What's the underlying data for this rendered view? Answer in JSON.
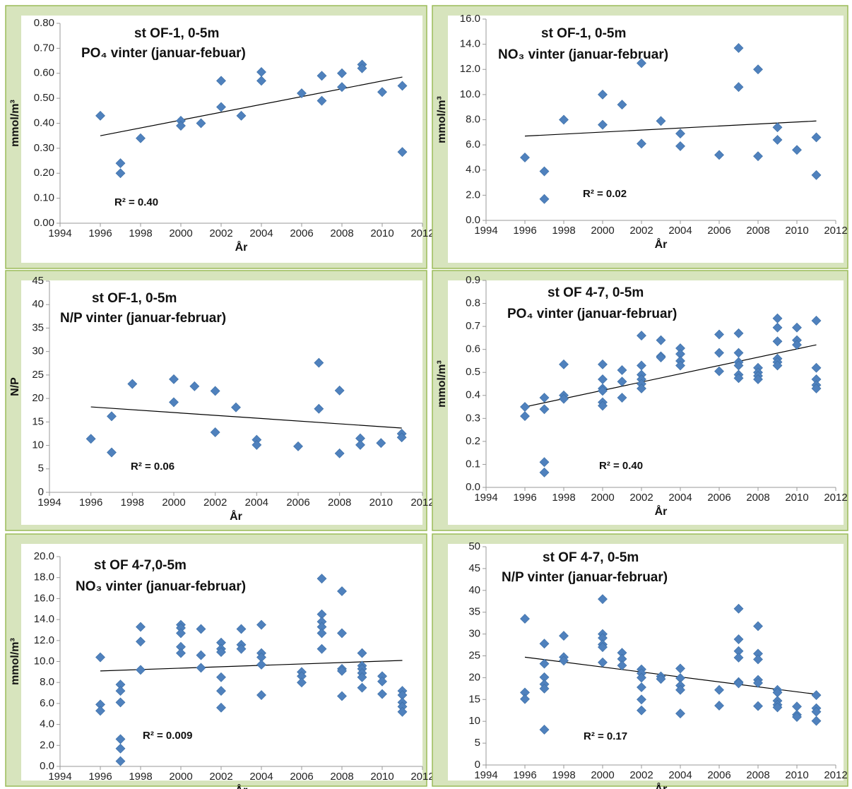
{
  "chart_data": [
    {
      "type": "scatter",
      "title": "st OF-1, 0-5m",
      "subtitle": "PO₄ vinter (januar-febuar)",
      "xlabel": "År",
      "ylabel": "mmol/m³",
      "annotation": "R² = 0.40",
      "color": "#4f81bd",
      "x": [
        1996,
        1997,
        1997,
        1998,
        2000,
        2000,
        2001,
        2002,
        2002,
        2003,
        2004,
        2004,
        2006,
        2007,
        2007,
        2008,
        2008,
        2009,
        2009,
        2010,
        2011,
        2011
      ],
      "values": [
        0.43,
        0.24,
        0.2,
        0.34,
        0.41,
        0.39,
        0.4,
        0.57,
        0.465,
        0.43,
        0.605,
        0.57,
        0.52,
        0.59,
        0.49,
        0.6,
        0.545,
        0.635,
        0.62,
        0.525,
        0.55,
        0.285
      ],
      "trendline": {
        "x": [
          1996,
          2011
        ],
        "values": [
          0.35,
          0.585
        ]
      },
      "xlim": [
        1994,
        2012
      ],
      "xticks": [
        1994,
        1996,
        1998,
        2000,
        2002,
        2004,
        2006,
        2008,
        2010,
        2012
      ],
      "ylim": [
        0,
        0.8
      ],
      "yticks": [
        {
          "value": 0,
          "label": "0.00"
        },
        {
          "value": 0.1,
          "label": "0.10"
        },
        {
          "value": 0.2,
          "label": "0.20"
        },
        {
          "value": 0.3,
          "label": "0.30"
        },
        {
          "value": 0.4,
          "label": "0.40"
        },
        {
          "value": 0.5,
          "label": "0.50"
        },
        {
          "value": 0.6,
          "label": "0.60"
        },
        {
          "value": 0.7,
          "label": "0.70"
        },
        {
          "value": 0.8,
          "label": "0.80"
        }
      ]
    },
    {
      "type": "scatter",
      "title": "st OF-1, 0-5m",
      "subtitle": "NO₃ vinter (januar-februar)",
      "xlabel": "År",
      "ylabel": "mmol/m³",
      "annotation": "R² = 0.02",
      "color": "#4f81bd",
      "x": [
        1996,
        1997,
        1997,
        1998,
        2000,
        2000,
        2001,
        2002,
        2002,
        2003,
        2004,
        2004,
        2006,
        2007,
        2007,
        2008,
        2008,
        2009,
        2009,
        2010,
        2011,
        2011
      ],
      "values": [
        5.0,
        3.9,
        1.7,
        8.0,
        10.0,
        7.6,
        9.2,
        12.5,
        6.1,
        7.9,
        6.9,
        5.9,
        5.2,
        13.7,
        10.6,
        12.0,
        5.1,
        7.4,
        6.4,
        5.6,
        6.6,
        3.6
      ],
      "trendline": {
        "x": [
          1996,
          2011
        ],
        "values": [
          6.7,
          7.9
        ]
      },
      "xlim": [
        1994,
        2012
      ],
      "xticks": [
        1994,
        1996,
        1998,
        2000,
        2002,
        2004,
        2006,
        2008,
        2010,
        2012
      ],
      "ylim": [
        0,
        16
      ],
      "yticks": [
        {
          "value": 0,
          "label": "0.0"
        },
        {
          "value": 2,
          "label": "2.0"
        },
        {
          "value": 4,
          "label": "4.0"
        },
        {
          "value": 6,
          "label": "6.0"
        },
        {
          "value": 8,
          "label": "8.0"
        },
        {
          "value": 10,
          "label": "10.0"
        },
        {
          "value": 12,
          "label": "12.0"
        },
        {
          "value": 14,
          "label": "14.0"
        },
        {
          "value": 16,
          "label": "16.0"
        }
      ]
    },
    {
      "type": "scatter",
      "title": "st OF-1,  0-5m",
      "subtitle": "N/P vinter (januar-februar)",
      "xlabel": "År",
      "ylabel": "N/P",
      "annotation": "R² = 0.06",
      "color": "#4f81bd",
      "x": [
        1996,
        1997,
        1997,
        1998,
        2000,
        2000,
        2001,
        2002,
        2002,
        2003,
        2004,
        2004,
        2006,
        2007,
        2007,
        2008,
        2008,
        2009,
        2009,
        2010,
        2011,
        2011
      ],
      "values": [
        11.4,
        16.2,
        8.5,
        23.1,
        24.1,
        19.2,
        22.6,
        21.6,
        12.8,
        18.1,
        11.2,
        10.1,
        9.8,
        27.6,
        17.8,
        21.7,
        8.3,
        11.5,
        10.1,
        10.5,
        12.5,
        11.7
      ],
      "trendline": {
        "x": [
          1996,
          2011
        ],
        "values": [
          18.2,
          13.7
        ]
      },
      "xlim": [
        1994,
        2012
      ],
      "xticks": [
        1994,
        1996,
        1998,
        2000,
        2002,
        2004,
        2006,
        2008,
        2010,
        2012
      ],
      "ylim": [
        0,
        45
      ],
      "yticks": [
        0,
        5,
        10,
        15,
        20,
        25,
        30,
        35,
        40,
        45
      ]
    },
    {
      "type": "scatter",
      "title": "st OF 4-7, 0-5m",
      "subtitle": "PO₄ vinter (januar-februar)",
      "xlabel": "År",
      "ylabel": "mmol/m³",
      "annotation": "R² = 0.40",
      "color": "#4f81bd",
      "x": [
        1996,
        1996,
        1997,
        1997,
        1997,
        1997,
        1998,
        1998,
        1998,
        2000,
        2000,
        2000,
        2000,
        2000,
        2000,
        2001,
        2001,
        2001,
        2002,
        2002,
        2002,
        2002,
        2002,
        2002,
        2003,
        2003,
        2003,
        2004,
        2004,
        2004,
        2004,
        2006,
        2006,
        2006,
        2007,
        2007,
        2007,
        2007,
        2007,
        2007,
        2008,
        2008,
        2008,
        2008,
        2009,
        2009,
        2009,
        2009,
        2009,
        2009,
        2010,
        2010,
        2010,
        2011,
        2011,
        2011,
        2011,
        2011
      ],
      "values": [
        0.35,
        0.31,
        0.39,
        0.34,
        0.11,
        0.065,
        0.535,
        0.4,
        0.385,
        0.535,
        0.47,
        0.43,
        0.42,
        0.37,
        0.355,
        0.51,
        0.46,
        0.39,
        0.66,
        0.53,
        0.49,
        0.47,
        0.45,
        0.43,
        0.64,
        0.57,
        0.565,
        0.605,
        0.58,
        0.55,
        0.53,
        0.665,
        0.585,
        0.505,
        0.67,
        0.585,
        0.545,
        0.53,
        0.49,
        0.475,
        0.52,
        0.5,
        0.485,
        0.47,
        0.735,
        0.695,
        0.635,
        0.56,
        0.545,
        0.53,
        0.695,
        0.64,
        0.62,
        0.725,
        0.52,
        0.47,
        0.445,
        0.43
      ],
      "trendline": {
        "x": [
          1996,
          2011
        ],
        "values": [
          0.35,
          0.62
        ]
      },
      "xlim": [
        1994,
        2012
      ],
      "xticks": [
        1994,
        1996,
        1998,
        2000,
        2002,
        2004,
        2006,
        2008,
        2010,
        2012
      ],
      "ylim": [
        0,
        0.9
      ],
      "yticks": [
        {
          "value": 0,
          "label": "0.0"
        },
        {
          "value": 0.1,
          "label": "0.1"
        },
        {
          "value": 0.2,
          "label": "0.2"
        },
        {
          "value": 0.3,
          "label": "0.3"
        },
        {
          "value": 0.4,
          "label": "0.4"
        },
        {
          "value": 0.5,
          "label": "0.5"
        },
        {
          "value": 0.6,
          "label": "0.6"
        },
        {
          "value": 0.7,
          "label": "0.7"
        },
        {
          "value": 0.8,
          "label": "0.8"
        },
        {
          "value": 0.9,
          "label": "0.9"
        }
      ]
    },
    {
      "type": "scatter",
      "title": "st OF 4-7,0-5m",
      "subtitle": "NO₃ vinter (januar-februar)",
      "xlabel": "År",
      "ylabel": "mmol/m³",
      "annotation": "R² = 0.009",
      "color": "#4f81bd",
      "x": [
        1996,
        1996,
        1996,
        1997,
        1997,
        1997,
        1997,
        1997,
        1997,
        1998,
        1998,
        1998,
        2000,
        2000,
        2000,
        2000,
        2000,
        2001,
        2001,
        2001,
        2002,
        2002,
        2002,
        2002,
        2002,
        2002,
        2003,
        2003,
        2003,
        2004,
        2004,
        2004,
        2004,
        2004,
        2006,
        2006,
        2006,
        2007,
        2007,
        2007,
        2007,
        2007,
        2007,
        2008,
        2008,
        2008,
        2008,
        2008,
        2009,
        2009,
        2009,
        2009,
        2009,
        2009,
        2010,
        2010,
        2010,
        2011,
        2011,
        2011,
        2011,
        2011
      ],
      "values": [
        10.4,
        5.9,
        5.3,
        7.8,
        7.2,
        6.1,
        2.6,
        1.7,
        0.5,
        13.3,
        11.9,
        9.2,
        13.5,
        13.2,
        12.7,
        11.4,
        10.8,
        13.1,
        10.6,
        9.4,
        11.8,
        11.2,
        10.9,
        8.5,
        7.2,
        5.6,
        13.1,
        11.6,
        11.2,
        13.5,
        10.8,
        10.4,
        9.7,
        6.8,
        9.0,
        8.6,
        8.0,
        17.9,
        14.5,
        13.8,
        13.3,
        12.7,
        11.2,
        16.7,
        12.7,
        9.3,
        9.1,
        6.7,
        10.8,
        9.6,
        9.3,
        8.9,
        8.5,
        7.5,
        8.6,
        8.1,
        6.9,
        7.2,
        6.8,
        6.1,
        5.7,
        5.2
      ],
      "trendline": {
        "x": [
          1996,
          2011
        ],
        "values": [
          9.1,
          10.1
        ]
      },
      "xlim": [
        1994,
        2012
      ],
      "xticks": [
        1994,
        1996,
        1998,
        2000,
        2002,
        2004,
        2006,
        2008,
        2010,
        2012
      ],
      "ylim": [
        0,
        20
      ],
      "yticks": [
        {
          "value": 0,
          "label": "0.0"
        },
        {
          "value": 2,
          "label": "2.0"
        },
        {
          "value": 4,
          "label": "4.0"
        },
        {
          "value": 6,
          "label": "6.0"
        },
        {
          "value": 8,
          "label": "8.0"
        },
        {
          "value": 10,
          "label": "10.0"
        },
        {
          "value": 12,
          "label": "12.0"
        },
        {
          "value": 14,
          "label": "14.0"
        },
        {
          "value": 16,
          "label": "16.0"
        },
        {
          "value": 18,
          "label": "18.0"
        },
        {
          "value": 20,
          "label": "20.0"
        }
      ]
    },
    {
      "type": "scatter",
      "title": "st OF 4-7, 0-5m",
      "subtitle": "N/P vinter (januar-februar)",
      "xlabel": "År",
      "annotation": "R² = 0.17",
      "color": "#4f81bd",
      "x": [
        1996,
        1996,
        1996,
        1997,
        1997,
        1997,
        1997,
        1997,
        1997,
        1998,
        1998,
        1998,
        2000,
        2000,
        2000,
        2000,
        2000,
        2000,
        2001,
        2001,
        2001,
        2002,
        2002,
        2002,
        2002,
        2002,
        2002,
        2003,
        2003,
        2004,
        2004,
        2004,
        2004,
        2004,
        2006,
        2006,
        2007,
        2007,
        2007,
        2007,
        2007,
        2007,
        2008,
        2008,
        2008,
        2008,
        2008,
        2008,
        2009,
        2009,
        2009,
        2009,
        2009,
        2010,
        2010,
        2010,
        2011,
        2011,
        2011,
        2011
      ],
      "values": [
        33.5,
        16.6,
        15.1,
        27.8,
        23.2,
        20.1,
        18.5,
        17.5,
        8.1,
        29.6,
        24.7,
        23.9,
        38.0,
        30.0,
        29.1,
        27.6,
        27.0,
        23.5,
        25.7,
        24.3,
        22.8,
        21.9,
        21.0,
        20.0,
        17.8,
        15.0,
        12.5,
        20.3,
        19.7,
        22.1,
        19.9,
        18.2,
        17.2,
        11.8,
        17.2,
        13.6,
        35.8,
        28.8,
        26.1,
        24.6,
        19.0,
        18.7,
        31.8,
        25.5,
        24.2,
        19.5,
        18.8,
        13.5,
        17.2,
        16.6,
        14.7,
        13.8,
        13.2,
        13.4,
        11.5,
        11.0,
        16.0,
        13.0,
        12.2,
        10.1
      ],
      "trendline": {
        "x": [
          1996,
          2011
        ],
        "values": [
          24.7,
          16.2
        ]
      },
      "xlim": [
        1994,
        2012
      ],
      "xticks": [
        1994,
        1996,
        1998,
        2000,
        2002,
        2004,
        2006,
        2008,
        2010,
        2012
      ],
      "ylim": [
        0,
        50
      ],
      "yticks": [
        0,
        5,
        10,
        15,
        20,
        25,
        30,
        35,
        40,
        45,
        50
      ]
    }
  ]
}
